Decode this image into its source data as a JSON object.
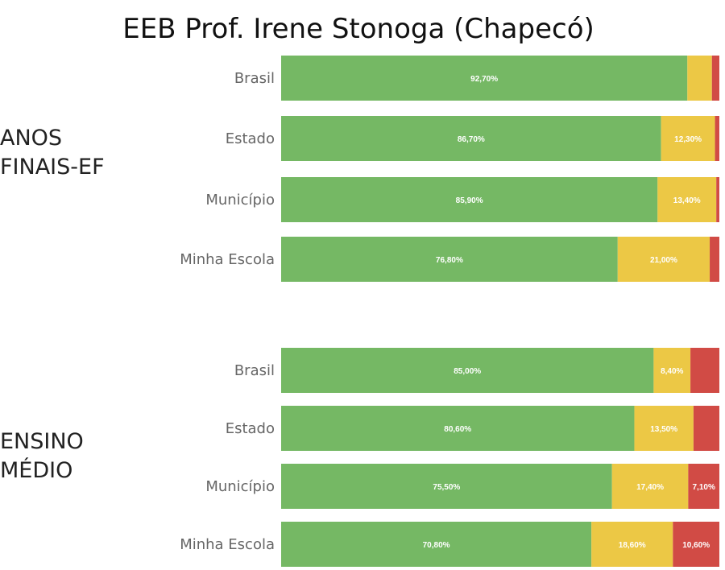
{
  "title": "EEB Prof. Irene Stonoga (Chapecó)",
  "colors": {
    "green": "#75b864",
    "yellow": "#ecc845",
    "red": "#d14b45"
  },
  "chart_data": [
    {
      "type": "bar",
      "orientation": "horizontal",
      "stacked": true,
      "group_label": [
        "ANOS",
        "FINAIS-EF"
      ],
      "categories": [
        "Brasil",
        "Estado",
        "Município",
        "Minha Escola"
      ],
      "series": [
        {
          "color": "green",
          "values": [
            92.7,
            86.7,
            85.9,
            76.8
          ],
          "labels": [
            "92,70%",
            "86,70%",
            "85,90%",
            "76,80%"
          ]
        },
        {
          "color": "yellow",
          "values": [
            5.6,
            12.3,
            13.4,
            21.0
          ],
          "labels": [
            "",
            "12,30%",
            "13,40%",
            "21,00%"
          ]
        },
        {
          "color": "red",
          "values": [
            1.7,
            1.0,
            0.7,
            2.2
          ],
          "labels": [
            "",
            "",
            "",
            ""
          ]
        }
      ],
      "xlim": [
        0,
        100
      ]
    },
    {
      "type": "bar",
      "orientation": "horizontal",
      "stacked": true,
      "group_label": [
        "ENSINO",
        "MÉDIO"
      ],
      "categories": [
        "Brasil",
        "Estado",
        "Município",
        "Minha Escola"
      ],
      "series": [
        {
          "color": "green",
          "values": [
            85.0,
            80.6,
            75.5,
            70.8
          ],
          "labels": [
            "85,00%",
            "80,60%",
            "75,50%",
            "70,80%"
          ]
        },
        {
          "color": "yellow",
          "values": [
            8.4,
            13.5,
            17.4,
            18.6
          ],
          "labels": [
            "8,40%",
            "13,50%",
            "17,40%",
            "18,60%"
          ]
        },
        {
          "color": "red",
          "values": [
            6.6,
            5.9,
            7.1,
            10.6
          ],
          "labels": [
            "",
            "",
            "7,10%",
            "10,60%"
          ]
        }
      ],
      "xlim": [
        0,
        100
      ]
    }
  ]
}
